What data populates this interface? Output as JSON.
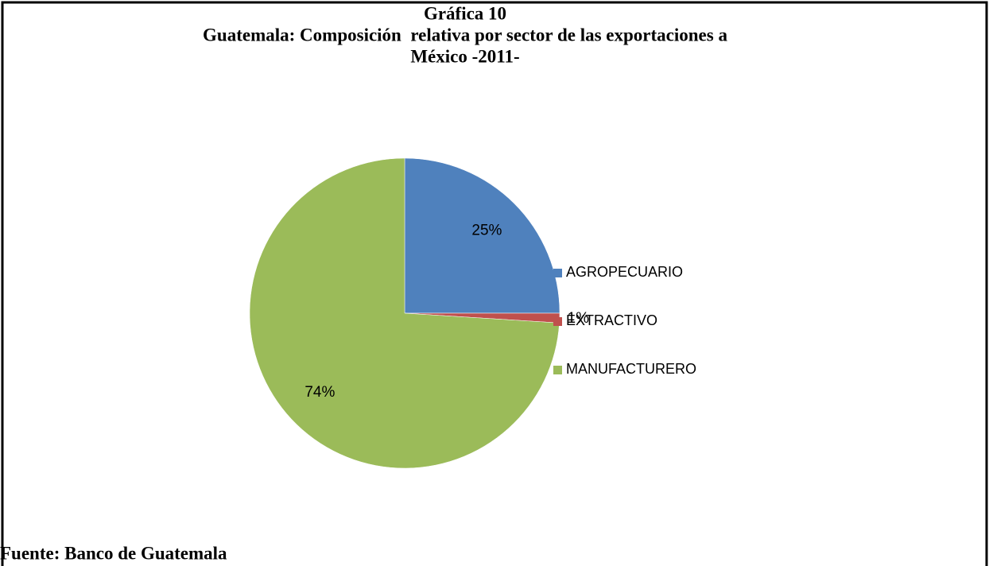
{
  "chart_data": {
    "type": "pie",
    "title": [
      "Gráfica 10",
      "Guatemala: Composición  relativa por sector de las exportaciones a",
      "México -2011-"
    ],
    "categories": [
      "AGROPECUARIO",
      "EXTRACTIVO",
      "MANUFACTURERO"
    ],
    "values": [
      25,
      1,
      74
    ],
    "value_labels": [
      "25%",
      "1%",
      "74%"
    ],
    "colors": [
      "#4f81bd",
      "#c0504d",
      "#9bbb59"
    ],
    "legend": "right",
    "source": "Fuente: Banco de Guatemala"
  }
}
